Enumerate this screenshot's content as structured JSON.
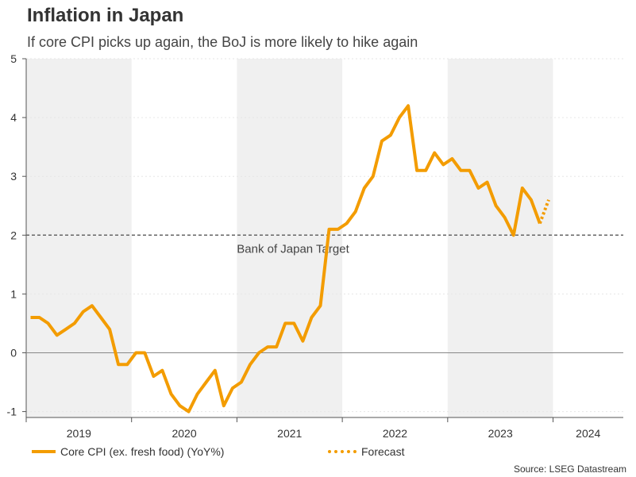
{
  "colors": {
    "line": "#f39c00",
    "band": "#f0f0f0",
    "target": "#666666",
    "zero": "#888888"
  },
  "title": "Inflation in Japan",
  "subtitle": "If core CPI picks up again, the BoJ is more likely to hike again",
  "legend": {
    "series": "Core CPI (ex. fresh food) (YoY%)",
    "forecast": "Forecast"
  },
  "source": "Source: LSEG Datastream",
  "chart_data": {
    "type": "line",
    "title": "Inflation in Japan",
    "subtitle": "If core CPI picks up again, the BoJ is more likely to hike again",
    "ylabel": "",
    "xlabel": "",
    "ylim": [
      -1.1,
      5
    ],
    "yticks": [
      -1,
      0,
      1,
      2,
      3,
      4,
      5
    ],
    "x_start": "2019-01",
    "years": [
      "2019",
      "2020",
      "2021",
      "2022",
      "2023",
      "2024"
    ],
    "target": {
      "value": 2,
      "label": "Bank of Japan Target"
    },
    "series": [
      {
        "name": "Core CPI (ex. fresh food) (YoY%)",
        "style": "solid",
        "values": [
          0.6,
          0.6,
          0.5,
          0.3,
          0.4,
          0.5,
          0.7,
          0.8,
          0.6,
          0.4,
          -0.2,
          -0.2,
          0.0,
          0.0,
          -0.4,
          -0.3,
          -0.7,
          -0.9,
          -1.0,
          -0.7,
          -0.5,
          -0.3,
          -0.9,
          -0.6,
          -0.5,
          -0.2,
          0.0,
          0.1,
          0.1,
          0.5,
          0.5,
          0.2,
          0.6,
          0.8,
          2.1,
          2.1,
          2.2,
          2.4,
          2.8,
          3.0,
          3.6,
          3.7,
          4.0,
          4.2,
          3.1,
          3.1,
          3.4,
          3.2,
          3.3,
          3.1,
          3.1,
          2.8,
          2.9,
          2.5,
          2.3,
          2.0,
          2.8,
          2.6,
          2.2
        ]
      },
      {
        "name": "Forecast",
        "style": "dotted",
        "start_index": 58,
        "values": [
          2.2,
          2.6
        ]
      }
    ]
  }
}
